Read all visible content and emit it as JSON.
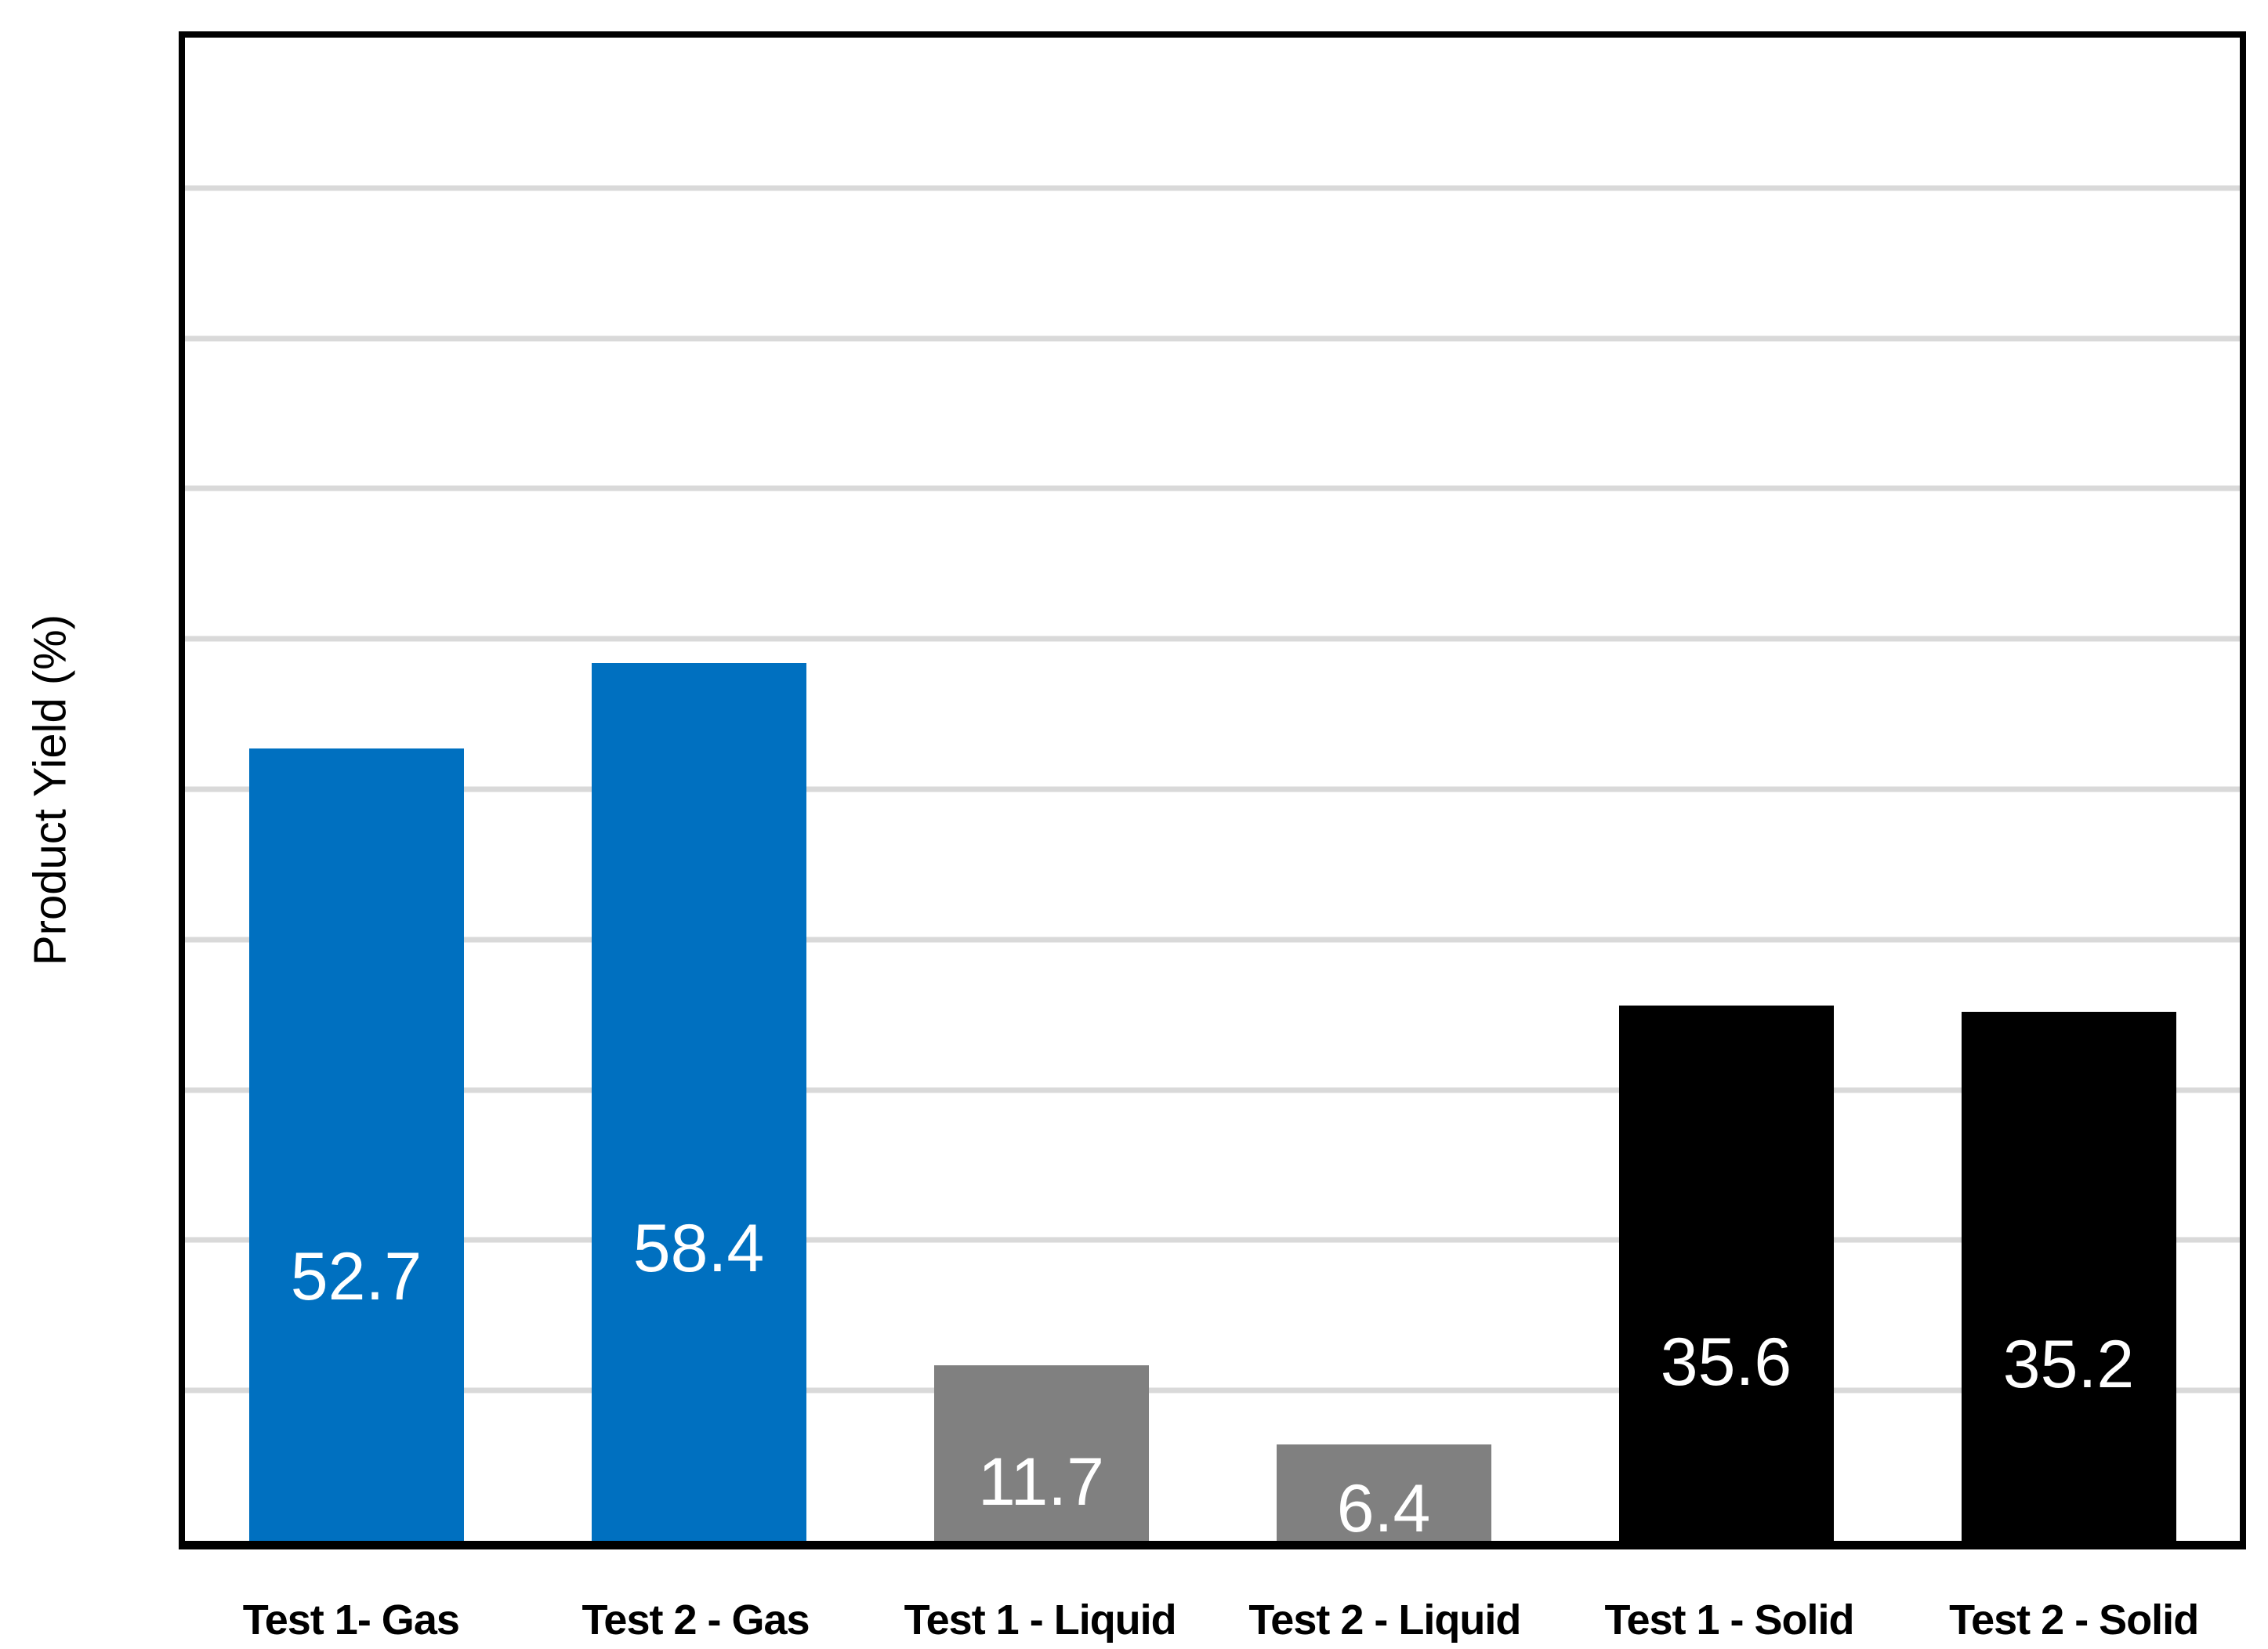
{
  "chart_data": {
    "type": "bar",
    "title": "",
    "xlabel": "",
    "ylabel": "Product Yield (%)",
    "categories": [
      "Test 1- Gas",
      "Test 2 - Gas",
      "Test 1 - Liquid",
      "Test 2 - Liquid",
      "Test 1 - Solid",
      "Test 2 - Solid"
    ],
    "values": [
      52.7,
      58.4,
      11.7,
      6.4,
      35.6,
      35.2
    ],
    "data_labels": [
      "52.7",
      "58.4",
      "11.7",
      "6.4",
      "35.6",
      "35.2"
    ],
    "series_groups": [
      "Gas",
      "Gas",
      "Liquid",
      "Liquid",
      "Solid",
      "Solid"
    ],
    "bar_colors": [
      "#0070C0",
      "#0070C0",
      "#808080",
      "#808080",
      "#000000",
      "#000000"
    ],
    "data_label_color": "#FFFFFF",
    "ylim": [
      0,
      100
    ],
    "gridline_interval": 10,
    "grid": "horizontal",
    "gridline_color": "#D9D9D9",
    "plot_border_color": "#000000",
    "background_color": "#FFFFFF",
    "legend": "none",
    "y_tick_labels_visible": false
  }
}
